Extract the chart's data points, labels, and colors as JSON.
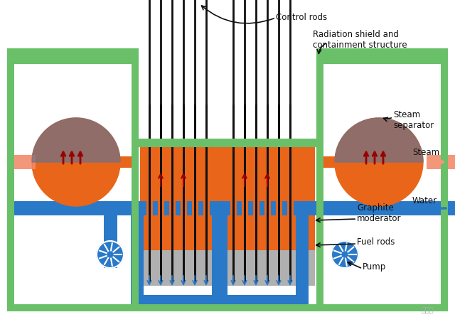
{
  "bg_color": "#ffffff",
  "green": "#6abf69",
  "orange": "#e8651a",
  "orange_light": "#f4967a",
  "blue": "#2979c8",
  "blue_dark": "#1a5fa8",
  "gray": "#b0b0b0",
  "dark_red": "#990000",
  "black": "#111111",
  "labels": {
    "control_rods": "Control rods",
    "radiation": "Radiation shield and\ncontainment structure",
    "steam_sep": "Steam\nseparator",
    "steam": "Steam",
    "water": "Water",
    "graphite": "Graphite\nmoderator",
    "fuel": "Fuel rods",
    "pump": "Pump"
  },
  "watermark": "自家号"
}
